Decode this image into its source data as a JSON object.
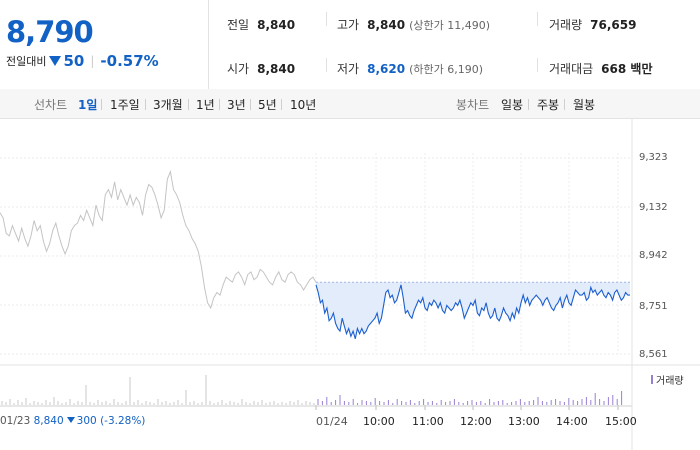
{
  "summary": {
    "price": "8,790",
    "change_label": "전일대비",
    "change": "50",
    "rate": "-0.57%"
  },
  "stats": {
    "prev_close": {
      "label": "전일",
      "value": "8,840"
    },
    "high": {
      "label": "고가",
      "value": "8,840",
      "sub": "(상한가 11,490)"
    },
    "volume": {
      "label": "거래량",
      "value": "76,659"
    },
    "open": {
      "label": "시가",
      "value": "8,840"
    },
    "low": {
      "label": "저가",
      "value": "8,620",
      "sub": "(하한가 6,190)"
    },
    "trade_value": {
      "label": "거래대금",
      "value": "668 백만"
    }
  },
  "controls": {
    "line_label": "선차트",
    "line_options": [
      "1일",
      "1주일",
      "3개월",
      "1년",
      "3년",
      "5년",
      "10년"
    ],
    "line_active": "1일",
    "candle_label": "봉차트",
    "candle_options": [
      "일봉",
      "주봉",
      "월봉"
    ]
  },
  "chart_data": {
    "type": "line",
    "y_ticks": [
      "9,323",
      "9,132",
      "8,942",
      "8,751",
      "8,561"
    ],
    "ylim": [
      8561,
      9323
    ],
    "x_ticks": [
      "01/24",
      "10:00",
      "11:00",
      "12:00",
      "13:00",
      "14:00",
      "15:00"
    ],
    "prev_day": {
      "date": "01/23",
      "close": "8,840",
      "change": "300",
      "rate": "(-3.28%)"
    },
    "volume_legend": "거래량",
    "reference_price": 8840,
    "series": [
      {
        "color": "#c4c4c4",
        "values": [
          9110,
          9090,
          9030,
          9020,
          9060,
          9030,
          9000,
          9050,
          9010,
          8980,
          9020,
          9080,
          9040,
          9060,
          9000,
          8960,
          8990,
          9040,
          9070,
          9020,
          8980,
          8950,
          8980,
          9040,
          9060,
          9070,
          9100,
          9080,
          9120,
          9090,
          9060,
          9140,
          9100,
          9080,
          9180,
          9200,
          9170,
          9230,
          9160,
          9200,
          9170,
          9140,
          9180,
          9140,
          9170,
          9150,
          9100,
          9180,
          9220,
          9210,
          9180,
          9140,
          9090,
          9120,
          9240,
          9270,
          9200,
          9180,
          9150,
          9100,
          9060,
          9040,
          9010,
          8990,
          8960,
          8900,
          8820,
          8760,
          8740,
          8780,
          8800,
          8790,
          8830,
          8860,
          8850,
          8840,
          8870,
          8880,
          8860,
          8830,
          8870,
          8880,
          8850,
          8860,
          8890,
          8880,
          8860,
          8840,
          8830,
          8860,
          8880,
          8850,
          8840,
          8870,
          8880,
          8870,
          8840,
          8830,
          8810,
          8830,
          8850,
          8860,
          8840
        ]
      },
      {
        "color": "#1b5fd0",
        "values": [
          8830,
          8800,
          8760,
          8770,
          8720,
          8740,
          8690,
          8700,
          8720,
          8680,
          8660,
          8650,
          8700,
          8670,
          8640,
          8660,
          8630,
          8650,
          8620,
          8660,
          8640,
          8660,
          8640,
          8650,
          8670,
          8680,
          8690,
          8700,
          8720,
          8680,
          8700,
          8750,
          8800,
          8810,
          8780,
          8790,
          8760,
          8770,
          8800,
          8830,
          8780,
          8720,
          8730,
          8710,
          8700,
          8730,
          8750,
          8770,
          8760,
          8780,
          8740,
          8730,
          8760,
          8750,
          8770,
          8760,
          8740,
          8760,
          8730,
          8720,
          8750,
          8740,
          8730,
          8740,
          8760,
          8750,
          8770,
          8740,
          8700,
          8720,
          8740,
          8760,
          8750,
          8770,
          8720,
          8710,
          8740,
          8730,
          8760,
          8720,
          8700,
          8710,
          8740,
          8700,
          8690,
          8710,
          8740,
          8720,
          8710,
          8690,
          8720,
          8700,
          8740,
          8720,
          8760,
          8790,
          8760,
          8780,
          8750,
          8770,
          8780,
          8790,
          8780,
          8770,
          8750,
          8770,
          8780,
          8760,
          8740,
          8730,
          8750,
          8760,
          8780,
          8740,
          8770,
          8790,
          8760,
          8750,
          8780,
          8810,
          8800,
          8790,
          8790,
          8800,
          8770,
          8780,
          8820,
          8800,
          8810,
          8790,
          8800,
          8810,
          8790,
          8780,
          8800,
          8790,
          8770,
          8800,
          8810,
          8790,
          8770,
          8780,
          8800,
          8790,
          8790
        ]
      }
    ]
  }
}
